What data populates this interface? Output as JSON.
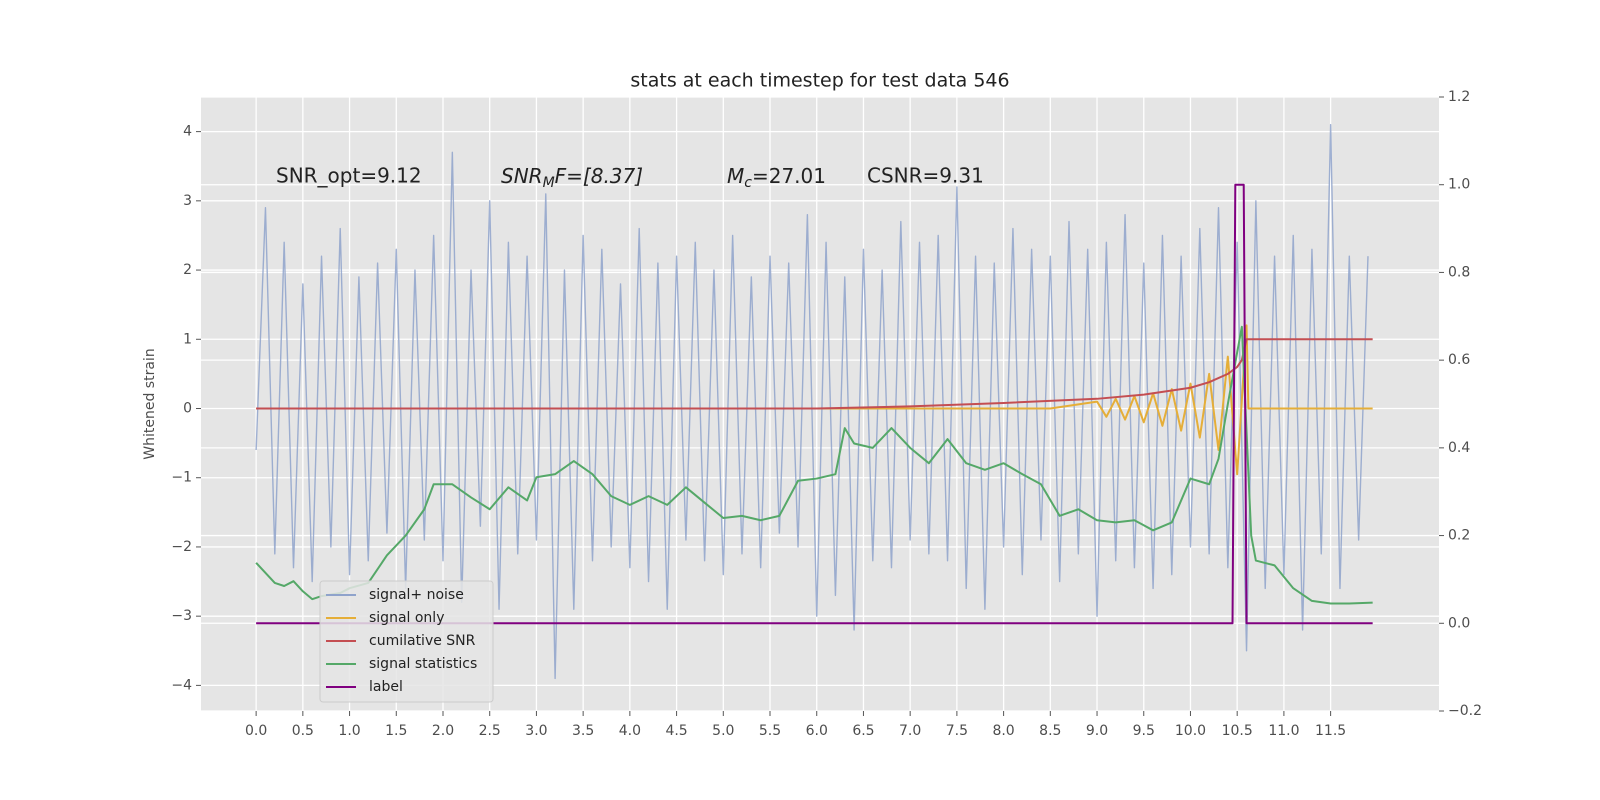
{
  "chart_data": {
    "type": "line",
    "title": "stats at each timestep for test data 546",
    "ylabel": "Whitened strain",
    "annotations": [
      {
        "text": "SNR_opt=9.12"
      },
      {
        "base": "SNR",
        "sub": "M",
        "rest": "F=[8.37]"
      },
      {
        "base": "M",
        "sub": "c",
        "rest": "=27.01"
      },
      {
        "text": "CSNR=9.31"
      }
    ],
    "xlim": [
      -0.59,
      12.66
    ],
    "xticks": [
      {
        "value": 0,
        "label": "0.0"
      },
      0.5,
      {
        "value": 1,
        "label": "1.0"
      },
      1.5,
      {
        "value": 2,
        "label": "2.0"
      },
      2.5,
      {
        "value": 3,
        "label": "3.0"
      },
      3.5,
      {
        "value": 4,
        "label": "4.0"
      },
      4.5,
      {
        "value": 5,
        "label": "5.0"
      },
      5.5,
      {
        "value": 6,
        "label": "6.0"
      },
      6.5,
      {
        "value": 7,
        "label": "7.0"
      },
      7.5,
      {
        "value": 8,
        "label": "8.0"
      },
      8.5,
      {
        "value": 9,
        "label": "9.0"
      },
      9.5,
      {
        "value": 10,
        "label": "10.0"
      },
      10.5,
      {
        "value": 11,
        "label": "11.0"
      },
      11.5
    ],
    "ylim": [
      -4.37,
      4.5
    ],
    "yticks": [
      {
        "value": -4,
        "label": "−4"
      },
      {
        "value": -3,
        "label": "−3"
      },
      {
        "value": -2,
        "label": "−2"
      },
      {
        "value": -1,
        "label": "−1"
      },
      0,
      1,
      2,
      3,
      4
    ],
    "y2lim": [
      -0.2,
      1.2
    ],
    "y2ticks": [
      {
        "value": -0.2,
        "label": "−0.2"
      },
      {
        "value": 0,
        "label": "0.0"
      },
      0.2,
      0.4,
      0.6,
      0.8,
      {
        "value": 1,
        "label": "1.0"
      },
      1.2
    ],
    "grid": true,
    "legend": "lower left",
    "series": [
      {
        "name": "signal+ noise",
        "color": "#8fa3cb",
        "x": [
          0,
          0.1,
          0.2,
          0.3,
          0.4,
          0.5,
          0.6,
          0.7,
          0.8,
          0.9,
          1,
          1.1,
          1.2,
          1.3,
          1.4,
          1.5,
          1.6,
          1.7,
          1.8,
          1.9,
          2,
          2.1,
          2.2,
          2.3,
          2.4,
          2.5,
          2.6,
          2.7,
          2.8,
          2.9,
          3,
          3.1,
          3.2,
          3.3,
          3.4,
          3.5,
          3.6,
          3.7,
          3.8,
          3.9,
          4,
          4.1,
          4.2,
          4.3,
          4.4,
          4.5,
          4.6,
          4.7,
          4.8,
          4.9,
          5,
          5.1,
          5.2,
          5.3,
          5.4,
          5.5,
          5.6,
          5.7,
          5.8,
          5.9,
          6,
          6.1,
          6.2,
          6.3,
          6.4,
          6.5,
          6.6,
          6.7,
          6.8,
          6.9,
          7,
          7.1,
          7.2,
          7.3,
          7.4,
          7.5,
          7.6,
          7.7,
          7.8,
          7.9,
          8,
          8.1,
          8.2,
          8.3,
          8.4,
          8.5,
          8.6,
          8.7,
          8.8,
          8.9,
          9,
          9.1,
          9.2,
          9.3,
          9.4,
          9.5,
          9.6,
          9.7,
          9.8,
          9.9,
          10,
          10.1,
          10.2,
          10.3,
          10.4,
          10.5,
          10.6,
          10.7,
          10.8,
          10.9,
          11,
          11.1,
          11.2,
          11.3,
          11.4,
          11.5,
          11.6,
          11.7,
          11.8,
          11.9
        ],
        "values": [
          -0.6,
          2.9,
          -2.1,
          2.4,
          -2.3,
          1.8,
          -2.5,
          2.2,
          -2.0,
          2.6,
          -2.4,
          1.9,
          -2.2,
          2.1,
          -1.8,
          2.3,
          -2.6,
          2.0,
          -1.9,
          2.5,
          -2.2,
          3.7,
          -2.8,
          2.0,
          -1.7,
          3.0,
          -2.9,
          2.4,
          -2.1,
          2.2,
          -1.9,
          3.1,
          -3.9,
          2.0,
          -2.9,
          2.5,
          -2.2,
          2.3,
          -2.0,
          1.8,
          -2.3,
          2.6,
          -2.5,
          2.1,
          -2.9,
          2.2,
          -1.9,
          2.4,
          -2.2,
          2.0,
          -2.4,
          2.5,
          -2.1,
          1.9,
          -2.3,
          2.2,
          -1.8,
          2.1,
          -2.0,
          2.8,
          -3.0,
          2.4,
          -2.7,
          1.9,
          -3.2,
          2.3,
          -2.2,
          2.0,
          -2.3,
          2.7,
          -1.9,
          2.4,
          -2.1,
          2.5,
          -2.2,
          3.2,
          -2.6,
          2.2,
          -2.9,
          2.1,
          -2.0,
          2.6,
          -2.4,
          2.3,
          -1.9,
          2.2,
          -2.5,
          2.7,
          -2.1,
          2.3,
          -3.0,
          2.4,
          -2.2,
          2.8,
          -2.3,
          2.1,
          -2.6,
          2.5,
          -2.4,
          2.2,
          -2.0,
          2.6,
          -2.1,
          2.9,
          -2.3,
          2.4,
          -3.5,
          3.0,
          -2.6,
          2.2,
          -2.4,
          2.5,
          -3.2,
          2.3,
          -2.1,
          4.1,
          -2.6,
          2.2,
          -1.9,
          2.2
        ]
      },
      {
        "name": "signal only",
        "color": "#e5ae38",
        "x": [
          0,
          8.5,
          9.0,
          9.1,
          9.2,
          9.3,
          9.4,
          9.5,
          9.6,
          9.7,
          9.8,
          9.9,
          10.0,
          10.1,
          10.2,
          10.3,
          10.4,
          10.5,
          10.6,
          10.62,
          11.95
        ],
        "values": [
          0,
          0,
          0.1,
          -0.12,
          0.14,
          -0.16,
          0.18,
          -0.2,
          0.22,
          -0.25,
          0.28,
          -0.32,
          0.36,
          -0.42,
          0.5,
          -0.6,
          0.75,
          -0.95,
          1.2,
          0,
          0
        ]
      },
      {
        "name": "cumilative SNR",
        "color": "#c44e52",
        "x": [
          0,
          6,
          7,
          8,
          9,
          9.5,
          10,
          10.2,
          10.4,
          10.5,
          10.55,
          10.6,
          11.95
        ],
        "values": [
          0,
          0,
          0.03,
          0.08,
          0.14,
          0.2,
          0.3,
          0.38,
          0.5,
          0.6,
          0.7,
          1.0,
          1.0
        ]
      },
      {
        "name": "signal statistics",
        "color": "#55a868",
        "axis": "y2",
        "x": [
          0,
          0.2,
          0.3,
          0.4,
          0.5,
          0.6,
          0.7,
          0.9,
          1.0,
          1.2,
          1.4,
          1.6,
          1.8,
          1.9,
          2.1,
          2.3,
          2.5,
          2.7,
          2.9,
          3.0,
          3.2,
          3.4,
          3.6,
          3.8,
          4.0,
          4.2,
          4.4,
          4.6,
          4.8,
          5.0,
          5.2,
          5.4,
          5.6,
          5.8,
          6.0,
          6.2,
          6.3,
          6.4,
          6.6,
          6.8,
          7.0,
          7.2,
          7.4,
          7.6,
          7.8,
          8.0,
          8.2,
          8.4,
          8.6,
          8.8,
          9.0,
          9.2,
          9.4,
          9.6,
          9.8,
          10.0,
          10.2,
          10.3,
          10.4,
          10.5,
          10.55,
          10.65,
          10.7,
          10.9,
          11.1,
          11.3,
          11.5,
          11.7,
          11.95
        ],
        "values": [
          0.138,
          0.092,
          0.085,
          0.096,
          0.073,
          0.055,
          0.062,
          0.069,
          0.08,
          0.092,
          0.155,
          0.2,
          0.26,
          0.317,
          0.317,
          0.287,
          0.26,
          0.31,
          0.28,
          0.333,
          0.34,
          0.37,
          0.34,
          0.29,
          0.27,
          0.29,
          0.27,
          0.31,
          0.275,
          0.24,
          0.245,
          0.235,
          0.245,
          0.325,
          0.33,
          0.34,
          0.445,
          0.41,
          0.4,
          0.445,
          0.4,
          0.365,
          0.42,
          0.365,
          0.35,
          0.365,
          0.34,
          0.317,
          0.245,
          0.26,
          0.235,
          0.23,
          0.235,
          0.212,
          0.23,
          0.33,
          0.317,
          0.375,
          0.5,
          0.618,
          0.676,
          0.2,
          0.143,
          0.132,
          0.08,
          0.051,
          0.045,
          0.045,
          0.047
        ]
      },
      {
        "name": "label",
        "color": "#800080",
        "axis": "y2",
        "x": [
          0,
          10.45,
          10.48,
          10.57,
          10.6,
          11.95
        ],
        "values": [
          0,
          0,
          1,
          1,
          0,
          0
        ]
      }
    ]
  }
}
